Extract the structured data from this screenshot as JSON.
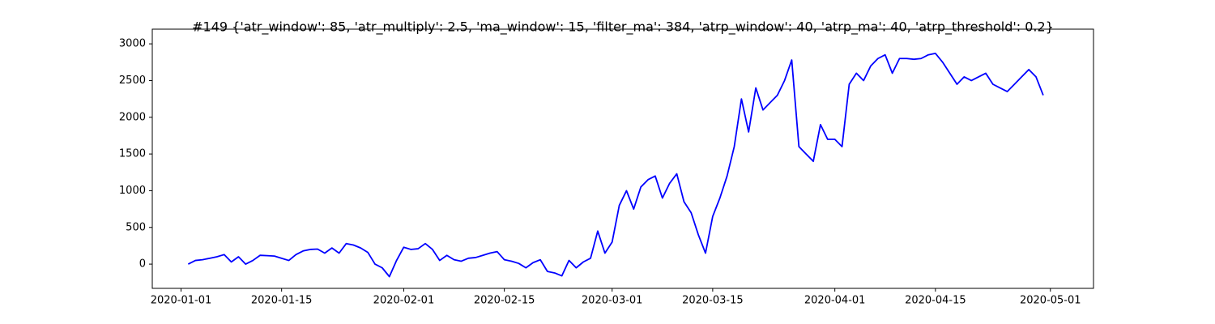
{
  "chart_data": {
    "type": "line",
    "title": "#149 {'atr_window': 85, 'atr_multiply': 2.5, 'ma_window': 15, 'filter_ma': 384, 'atrp_window': 40, 'atrp_ma': 40, 'atrp_threshold': 0.2}",
    "x": [
      "2020-01-02",
      "2020-01-03",
      "2020-01-04",
      "2020-01-05",
      "2020-01-06",
      "2020-01-07",
      "2020-01-08",
      "2020-01-09",
      "2020-01-10",
      "2020-01-11",
      "2020-01-12",
      "2020-01-13",
      "2020-01-14",
      "2020-01-15",
      "2020-01-16",
      "2020-01-17",
      "2020-01-18",
      "2020-01-19",
      "2020-01-20",
      "2020-01-21",
      "2020-01-22",
      "2020-01-23",
      "2020-01-24",
      "2020-01-25",
      "2020-01-26",
      "2020-01-27",
      "2020-01-28",
      "2020-01-29",
      "2020-01-30",
      "2020-01-31",
      "2020-02-01",
      "2020-02-02",
      "2020-02-03",
      "2020-02-04",
      "2020-02-05",
      "2020-02-06",
      "2020-02-07",
      "2020-02-08",
      "2020-02-09",
      "2020-02-10",
      "2020-02-11",
      "2020-02-12",
      "2020-02-13",
      "2020-02-14",
      "2020-02-15",
      "2020-02-16",
      "2020-02-17",
      "2020-02-18",
      "2020-02-19",
      "2020-02-20",
      "2020-02-21",
      "2020-02-22",
      "2020-02-23",
      "2020-02-24",
      "2020-02-25",
      "2020-02-26",
      "2020-02-27",
      "2020-02-28",
      "2020-02-29",
      "2020-03-01",
      "2020-03-02",
      "2020-03-03",
      "2020-03-04",
      "2020-03-05",
      "2020-03-06",
      "2020-03-07",
      "2020-03-08",
      "2020-03-09",
      "2020-03-10",
      "2020-03-11",
      "2020-03-12",
      "2020-03-13",
      "2020-03-14",
      "2020-03-15",
      "2020-03-16",
      "2020-03-17",
      "2020-03-18",
      "2020-03-19",
      "2020-03-20",
      "2020-03-21",
      "2020-03-22",
      "2020-03-23",
      "2020-03-24",
      "2020-03-25",
      "2020-03-26",
      "2020-03-27",
      "2020-03-28",
      "2020-03-29",
      "2020-03-30",
      "2020-03-31",
      "2020-04-01",
      "2020-04-02",
      "2020-04-03",
      "2020-04-04",
      "2020-04-05",
      "2020-04-06",
      "2020-04-07",
      "2020-04-08",
      "2020-04-09",
      "2020-04-10",
      "2020-04-11",
      "2020-04-12",
      "2020-04-13",
      "2020-04-14",
      "2020-04-15",
      "2020-04-16",
      "2020-04-17",
      "2020-04-18",
      "2020-04-19",
      "2020-04-20",
      "2020-04-21",
      "2020-04-22",
      "2020-04-23",
      "2020-04-24",
      "2020-04-25",
      "2020-04-26",
      "2020-04-27",
      "2020-04-28",
      "2020-04-29",
      "2020-04-30"
    ],
    "series": [
      {
        "color": "#0000ff",
        "values": [
          0,
          50,
          60,
          80,
          100,
          130,
          30,
          100,
          0,
          50,
          120,
          115,
          110,
          80,
          50,
          130,
          180,
          200,
          205,
          150,
          220,
          150,
          280,
          260,
          220,
          160,
          0,
          -50,
          -170,
          50,
          230,
          200,
          210,
          280,
          200,
          50,
          120,
          60,
          40,
          80,
          90,
          120,
          150,
          170,
          60,
          40,
          10,
          -50,
          20,
          60,
          -100,
          -120,
          -160,
          50,
          -50,
          30,
          80,
          450,
          150,
          300,
          800,
          1000,
          750,
          1050,
          1150,
          1200,
          900,
          1100,
          1230,
          850,
          700,
          400,
          150,
          650,
          900,
          1200,
          1600,
          2250,
          1800,
          2400,
          2100,
          2200,
          2300,
          2500,
          2780,
          1600,
          1500,
          1400,
          1900,
          1700,
          1700,
          1600,
          2450,
          2600,
          2500,
          2700,
          2800,
          2850,
          2600,
          2800,
          2800,
          2790,
          2800,
          2850,
          2870,
          2750,
          2600,
          2450,
          2550,
          2500,
          2550,
          2600,
          2450,
          2400,
          2350,
          2450,
          2550,
          2650,
          2550,
          2300
        ]
      }
    ],
    "xlim": [
      "2019-12-28",
      "2020-05-07"
    ],
    "xticks": [
      "2020-01-01",
      "2020-01-15",
      "2020-02-01",
      "2020-02-15",
      "2020-03-01",
      "2020-03-15",
      "2020-04-01",
      "2020-04-15",
      "2020-05-01"
    ],
    "ylim": [
      -330,
      3200
    ],
    "yticks": [
      0,
      500,
      1000,
      1500,
      2000,
      2500,
      3000
    ]
  }
}
